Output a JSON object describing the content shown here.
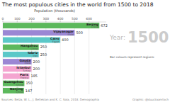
{
  "chart_data": {
    "type": "bar",
    "orientation": "horizontal",
    "title": "The most populous cities in the world from 1500 to 2018",
    "xlabel": "Population (thousands)",
    "categories": [
      "Beijing",
      "Vijayanagar",
      "Cairo",
      "Hangzhou",
      "Tabriz",
      "Gauda",
      "Istanbul",
      "Paris",
      "Guangzhou",
      "Nanjing"
    ],
    "country_labels": [
      "China",
      "India",
      "Egypt",
      "China",
      "Iran",
      "India",
      "Turkey",
      "France",
      "China",
      "China"
    ],
    "values": [
      672,
      500,
      400,
      250,
      250,
      200,
      200,
      185,
      150,
      147
    ],
    "colors": [
      "#5cb85c",
      "#9b87d4",
      "#5bc8c8",
      "#5cb85c",
      "#5bc8c8",
      "#9b87d4",
      "#f4a5d0",
      "#f4a5d0",
      "#5cb85c",
      "#5cb85c"
    ],
    "xlim": [
      0,
      720
    ],
    "xticks": [
      0,
      100,
      200,
      300,
      400,
      500,
      600
    ],
    "grid": true,
    "data_labels": true,
    "annotations": [
      "Year:",
      "1500",
      "Bar colours represent regions:",
      "Sources: Belza, W. L., J. Beltekian and K. C. Sala, 2018. Demographia",
      "Graphic: @duurzaamtoch"
    ]
  }
}
